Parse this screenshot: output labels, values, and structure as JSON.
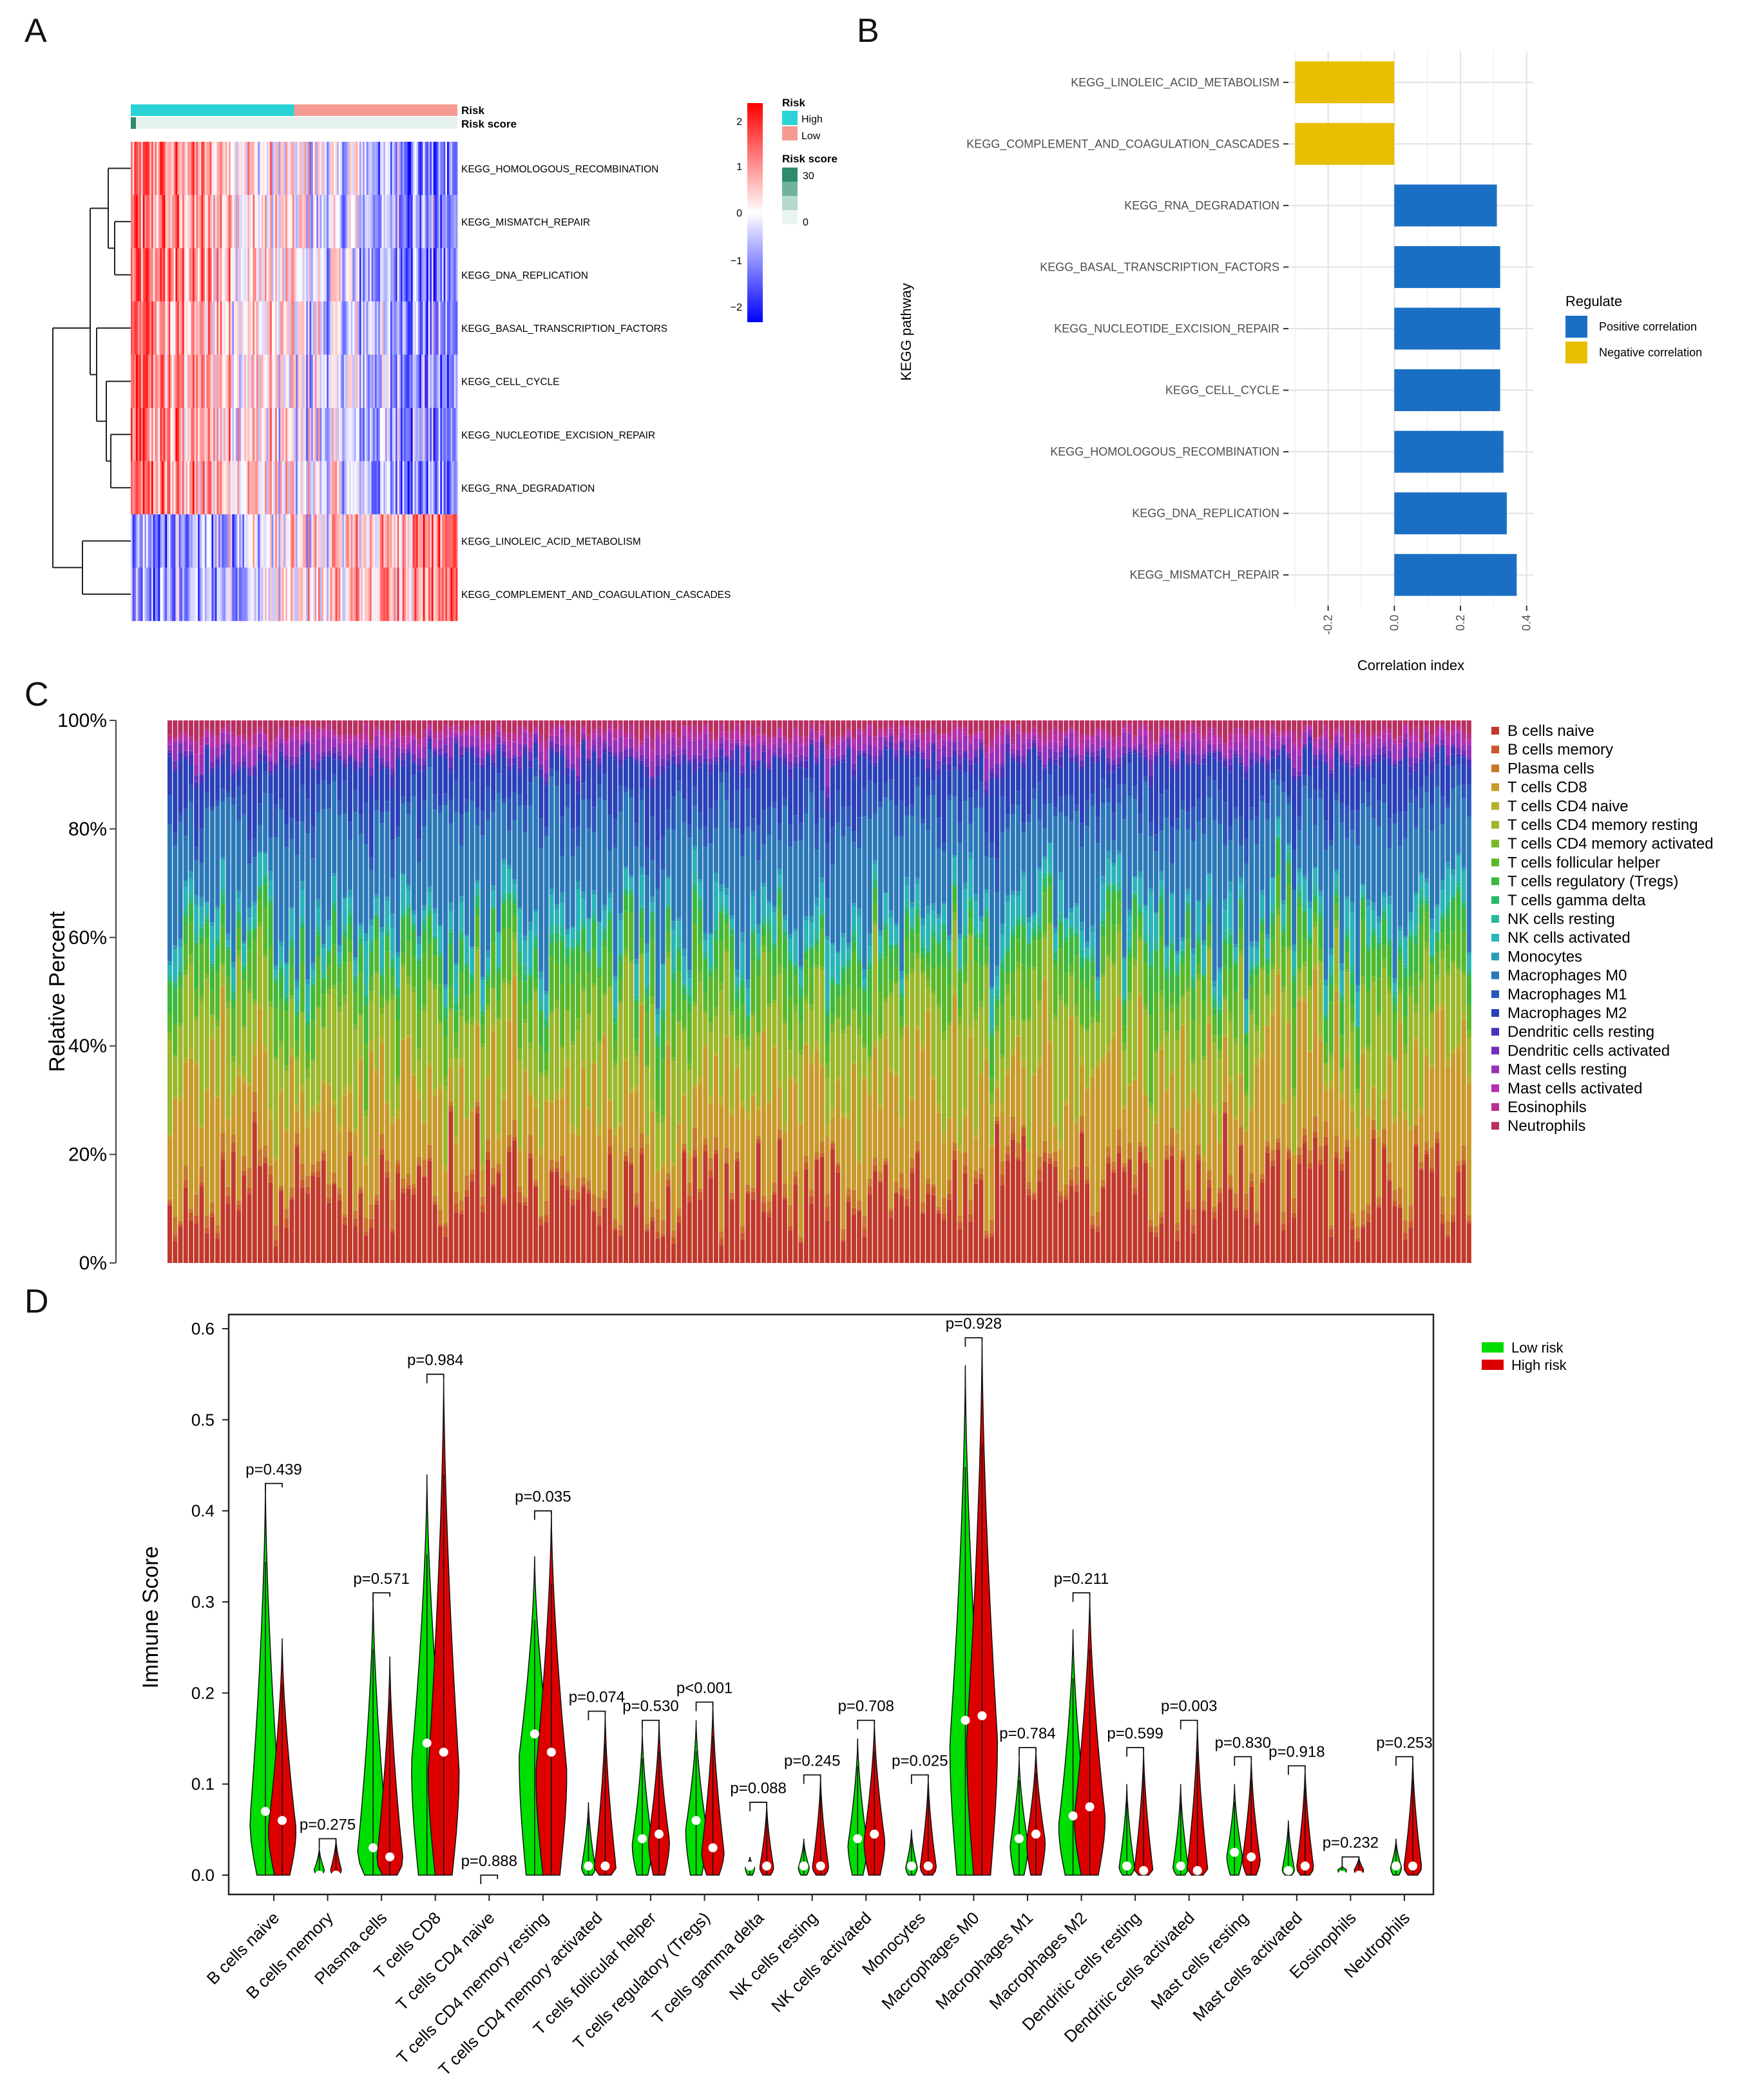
{
  "panels": {
    "a": "A",
    "b": "B",
    "c": "C",
    "d": "D"
  },
  "colors": {
    "heat_high": "#ff0000",
    "heat_mid": "#ffffff",
    "heat_low": "#0000ff",
    "risk_high": "#2ad4d6",
    "risk_low": "#f59a93",
    "risk_score": "#2e8b6b",
    "positive": "#1a6fc4",
    "negative": "#e8bf00",
    "low_risk": "#00dd00",
    "high_risk": "#dd0000"
  },
  "chart_data": [
    {
      "type": "heatmap",
      "id": "A",
      "annotation_labels": [
        "Risk",
        "Risk score"
      ],
      "rows": [
        "KEGG_HOMOLOGOUS_RECOMBINATION",
        "KEGG_MISMATCH_REPAIR",
        "KEGG_DNA_REPLICATION",
        "KEGG_BASAL_TRANSCRIPTION_FACTORS",
        "KEGG_CELL_CYCLE",
        "KEGG_NUCLEOTIDE_EXCISION_REPAIR",
        "KEGG_RNA_DEGRADATION",
        "KEGG_LINOLEIC_ACID_METABOLISM",
        "KEGG_COMPLEMENT_AND_COAGULATION_CASCADES"
      ],
      "row_trend": [
        1,
        1,
        1,
        1,
        1,
        1,
        1,
        -1,
        -1
      ],
      "color_scale": {
        "ticks": [
          2,
          1,
          0,
          -1,
          -2
        ],
        "tick_labels": [
          "2",
          "1",
          "0",
          "−1",
          "−2"
        ]
      },
      "legend": {
        "risk_title": "Risk",
        "risk_levels": [
          "High",
          "Low"
        ],
        "score_title": "Risk score",
        "score_ticks": [
          "30",
          "0"
        ]
      }
    },
    {
      "type": "bar",
      "id": "B",
      "orientation": "horizontal",
      "categories": [
        "KEGG_LINOLEIC_ACID_METABOLISM",
        "KEGG_COMPLEMENT_AND_COAGULATION_CASCADES",
        "KEGG_RNA_DEGRADATION",
        "KEGG_BASAL_TRANSCRIPTION_FACTORS",
        "KEGG_NUCLEOTIDE_EXCISION_REPAIR",
        "KEGG_CELL_CYCLE",
        "KEGG_HOMOLOGOUS_RECOMBINATION",
        "KEGG_DNA_REPLICATION",
        "KEGG_MISMATCH_REPAIR"
      ],
      "values": [
        -0.3,
        -0.3,
        0.31,
        0.32,
        0.32,
        0.32,
        0.33,
        0.34,
        0.37
      ],
      "xlabel": "Correlation index",
      "ylabel": "KEGG pathway",
      "xlim": [
        -0.32,
        0.42
      ],
      "xticks": [
        -0.2,
        0.0,
        0.2,
        0.4
      ],
      "xtick_labels": [
        "-0.2",
        "0.0",
        "0.2",
        "0.4"
      ],
      "legend": {
        "title": "Regulate",
        "entries": [
          "Positive correlation",
          "Negative correlation"
        ]
      }
    },
    {
      "type": "bar",
      "id": "C",
      "stacked": true,
      "ylabel": "Relative Percent",
      "ylim": [
        0,
        100
      ],
      "yticks": [
        "0%",
        "20%",
        "40%",
        "60%",
        "80%",
        "100%"
      ],
      "n_samples": 246,
      "series": [
        "B cells naive",
        "B cells memory",
        "Plasma cells",
        "T cells CD8",
        "T cells CD4 naive",
        "T cells CD4 memory resting",
        "T cells CD4 memory activated",
        "T cells follicular helper",
        "T cells regulatory (Tregs)",
        "T cells gamma delta",
        "NK cells resting",
        "NK cells activated",
        "Monocytes",
        "Macrophages M0",
        "Macrophages M1",
        "Macrophages M2",
        "Dendritic cells resting",
        "Dendritic cells activated",
        "Mast cells resting",
        "Mast cells activated",
        "Eosinophils",
        "Neutrophils"
      ],
      "series_colors": [
        "#c0392b",
        "#c85a2a",
        "#c8782a",
        "#c89a2a",
        "#b8b02a",
        "#9ab82a",
        "#7ab82a",
        "#58b82a",
        "#3cb83c",
        "#2ab86a",
        "#2ab89a",
        "#2ab4b8",
        "#2a9cb8",
        "#2a78b8",
        "#2a58b8",
        "#2a40b8",
        "#4a30b8",
        "#7030b8",
        "#9a30b8",
        "#b830b0",
        "#b83090",
        "#b83060"
      ],
      "mean_fractions": [
        0.14,
        0.01,
        0.02,
        0.18,
        0.01,
        0.14,
        0.01,
        0.06,
        0.04,
        0.01,
        0.01,
        0.04,
        0.01,
        0.17,
        0.04,
        0.07,
        0.01,
        0.01,
        0.02,
        0.01,
        0.01,
        0.02
      ]
    },
    {
      "type": "violin",
      "id": "D",
      "ylabel": "Immune Score",
      "ylim": [
        0,
        0.6
      ],
      "yticks": [
        "0.0",
        "0.1",
        "0.2",
        "0.3",
        "0.4",
        "0.5",
        "0.6"
      ],
      "categories": [
        "B cells naive",
        "B cells memory",
        "Plasma cells",
        "T cells CD8",
        "T cells CD4 naive",
        "T cells CD4 memory resting",
        "T cells CD4 memory activated",
        "T cells follicular helper",
        "T cells regulatory (Tregs)",
        "T cells gamma delta",
        "NK cells resting",
        "NK cells activated",
        "Monocytes",
        "Macrophages M0",
        "Macrophages M1",
        "Macrophages M2",
        "Dendritic cells resting",
        "Dendritic cells activated",
        "Mast cells resting",
        "Mast cells activated",
        "Eosinophils",
        "Neutrophils"
      ],
      "pvalues": [
        "p=0.439",
        "p=0.275",
        "p=0.571",
        "p=0.984",
        "p=0.888",
        "p=0.035",
        "p=0.074",
        "p=0.530",
        "p<0.001",
        "p=0.088",
        "p=0.245",
        "p=0.708",
        "p=0.025",
        "p=0.928",
        "p=0.784",
        "p=0.211",
        "p=0.599",
        "p=0.003",
        "p=0.830",
        "p=0.918",
        "p=0.232",
        "p=0.253"
      ],
      "series": [
        {
          "name": "Low risk",
          "max": [
            0.43,
            0.03,
            0.31,
            0.44,
            0.0,
            0.35,
            0.08,
            0.16,
            0.17,
            0.02,
            0.04,
            0.15,
            0.05,
            0.56,
            0.13,
            0.27,
            0.1,
            0.1,
            0.1,
            0.06,
            0.01,
            0.04
          ],
          "median": [
            0.07,
            0.0,
            0.03,
            0.145,
            0.0,
            0.155,
            0.01,
            0.04,
            0.06,
            0.01,
            0.01,
            0.04,
            0.01,
            0.17,
            0.04,
            0.065,
            0.01,
            0.01,
            0.025,
            0.005,
            0.0,
            0.01
          ]
        },
        {
          "name": "High risk",
          "max": [
            0.26,
            0.04,
            0.24,
            0.55,
            0.0,
            0.4,
            0.18,
            0.17,
            0.19,
            0.08,
            0.11,
            0.17,
            0.11,
            0.59,
            0.14,
            0.31,
            0.14,
            0.17,
            0.13,
            0.12,
            0.02,
            0.13
          ],
          "median": [
            0.06,
            0.0,
            0.02,
            0.135,
            0.0,
            0.135,
            0.01,
            0.045,
            0.03,
            0.01,
            0.01,
            0.045,
            0.01,
            0.175,
            0.045,
            0.075,
            0.005,
            0.005,
            0.02,
            0.01,
            0.0,
            0.01
          ]
        }
      ],
      "legend": [
        "Low risk",
        "High risk"
      ]
    }
  ]
}
